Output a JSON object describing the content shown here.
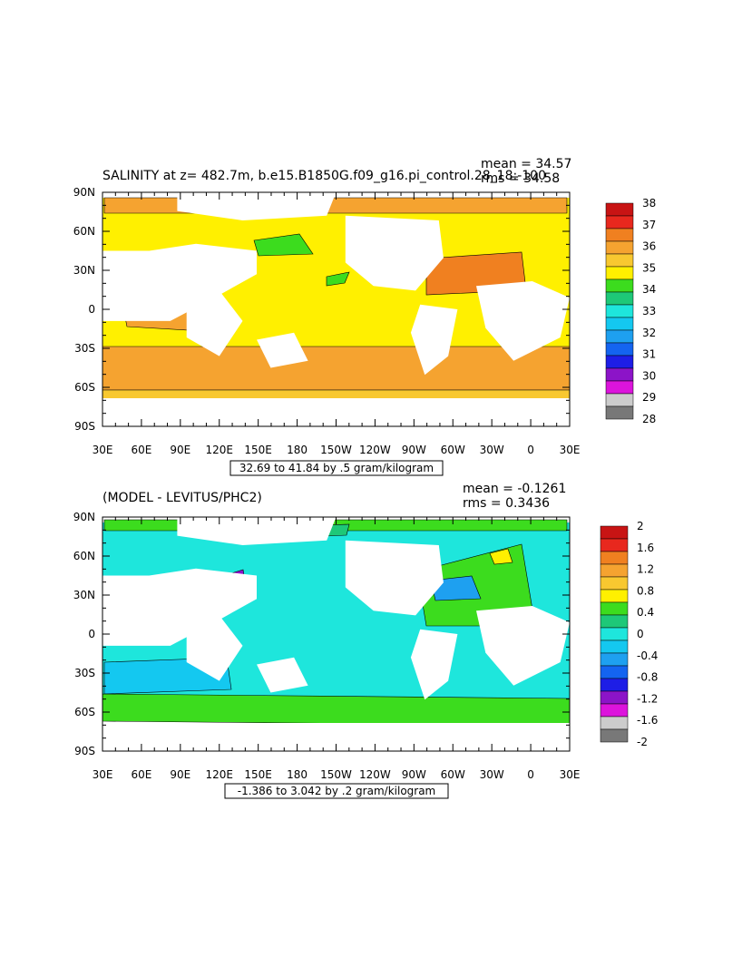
{
  "chart_data": [
    {
      "type": "heatmap",
      "title": "SALINITY at z= 482.7m, b.e15.B1850G.f09_g16.pi_control.28_18:-100",
      "stat_mean": "mean = 34.57",
      "stat_rms": "rms = 34.58",
      "range_label": "32.69 to 41.84 by .5 gram/kilogram",
      "x_ticks": [
        "30E",
        "60E",
        "90E",
        "120E",
        "150E",
        "180",
        "150W",
        "120W",
        "90W",
        "60W",
        "30W",
        "0",
        "30E"
      ],
      "y_ticks": [
        "90N",
        "60N",
        "30N",
        "0",
        "30S",
        "60S",
        "90S"
      ],
      "colorbar_labels": [
        "38",
        "37",
        "36",
        "35",
        "34",
        "33",
        "32",
        "31",
        "30",
        "29",
        "28"
      ],
      "colorbar_colors": [
        "#c81414",
        "#e8281e",
        "#f08020",
        "#f5a330",
        "#f8c830",
        "#fff000",
        "#3cdc1e",
        "#1ec878",
        "#1ee6dc",
        "#14c8f0",
        "#1ea0f0",
        "#1464f0",
        "#1e1ee6",
        "#8c14c8",
        "#dc14dc",
        "#cccccc",
        "#787878"
      ]
    },
    {
      "type": "heatmap",
      "title": "(MODEL - LEVITUS/PHC2)",
      "stat_mean": "mean = -0.1261",
      "stat_rms": "rms = 0.3436",
      "range_label": "-1.386 to 3.042 by .2 gram/kilogram",
      "x_ticks": [
        "30E",
        "60E",
        "90E",
        "120E",
        "150E",
        "180",
        "150W",
        "120W",
        "90W",
        "60W",
        "30W",
        "0",
        "30E"
      ],
      "y_ticks": [
        "90N",
        "60N",
        "30N",
        "0",
        "30S",
        "60S",
        "90S"
      ],
      "colorbar_labels": [
        "2",
        "1.6",
        "1.2",
        "0.8",
        "0.4",
        "0",
        "-0.4",
        "-0.8",
        "-1.2",
        "-1.6",
        "-2"
      ],
      "colorbar_colors": [
        "#c81414",
        "#e8281e",
        "#f08020",
        "#f5a330",
        "#f8c830",
        "#fff000",
        "#3cdc1e",
        "#1ec878",
        "#1ee6dc",
        "#14c8f0",
        "#1ea0f0",
        "#1464f0",
        "#1e1ee6",
        "#8c14c8",
        "#dc14dc",
        "#cccccc",
        "#787878"
      ]
    }
  ]
}
